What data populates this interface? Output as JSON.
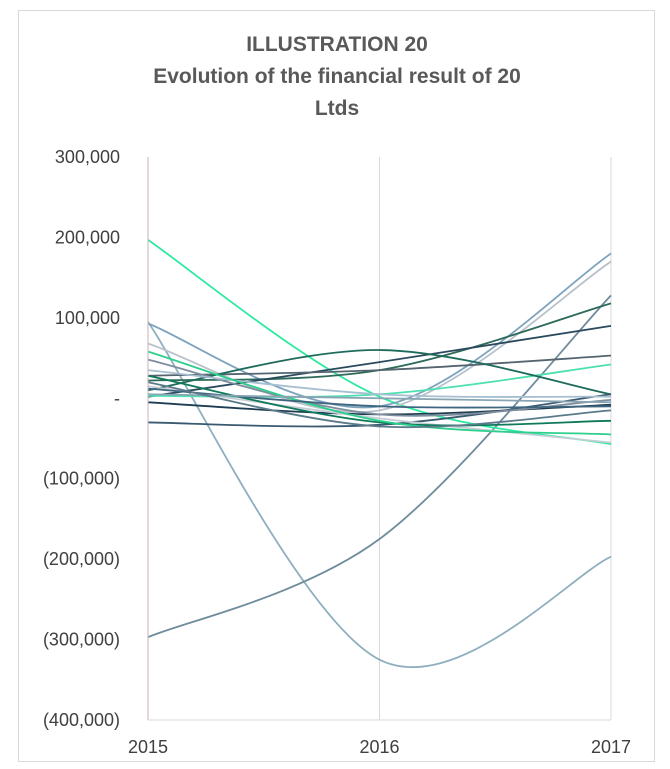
{
  "chart_data": {
    "type": "line",
    "title_lines": [
      "ILLUSTRATION 20",
      "Evolution of the financial result of 20",
      "Ltds"
    ],
    "xlabel": "",
    "ylabel": "",
    "x": [
      2015,
      2016,
      2017
    ],
    "x_tick_labels": [
      "2015",
      "2016",
      "2017"
    ],
    "ylim": [
      -400000,
      300000
    ],
    "y_ticks": [
      300000,
      200000,
      100000,
      0,
      -100000,
      -200000,
      -300000,
      -400000
    ],
    "y_tick_labels": [
      "300,000",
      "200,000",
      "100,000",
      "-",
      "(100,000)",
      "(200,000)",
      "(300,000)",
      "(400,000)"
    ],
    "grid": "vertical",
    "legend": "none",
    "series": [
      {
        "color": "#8fafc0",
        "values": [
          95000,
          -325000,
          -197000
        ]
      },
      {
        "color": "#6f8c9c",
        "values": [
          -297000,
          -175000,
          128000
        ]
      },
      {
        "color": "#2eeaa0",
        "values": [
          197000,
          2000,
          -57000
        ]
      },
      {
        "color": "#7ea3bd",
        "values": [
          93000,
          -10000,
          180000
        ]
      },
      {
        "color": "#b9c2cb",
        "values": [
          68000,
          -15000,
          170000
        ]
      },
      {
        "color": "#2d6a5a",
        "values": [
          22000,
          35000,
          118000
        ]
      },
      {
        "color": "#2b4a5e",
        "values": [
          2000,
          45000,
          90000
        ]
      },
      {
        "color": "#556570",
        "values": [
          28000,
          35000,
          53000
        ]
      },
      {
        "color": "#4de0b0",
        "values": [
          3000,
          5000,
          42000
        ]
      },
      {
        "color": "#1e6b5c",
        "values": [
          10000,
          60000,
          5000
        ]
      },
      {
        "color": "#3a5a70",
        "values": [
          -30000,
          -33000,
          5000
        ]
      },
      {
        "color": "#1f3d52",
        "values": [
          -5000,
          -20000,
          -8000
        ]
      },
      {
        "color": "#7e8e9e",
        "values": [
          48000,
          -20000,
          -2000
        ]
      },
      {
        "color": "#a7c0d1",
        "values": [
          35000,
          5000,
          2000
        ]
      },
      {
        "color": "#c5ced6",
        "values": [
          15000,
          -25000,
          -55000
        ]
      },
      {
        "color": "#0e7a5a",
        "values": [
          28000,
          -30000,
          -28000
        ]
      },
      {
        "color": "#2ccf8c",
        "values": [
          58000,
          -28000,
          -45000
        ]
      },
      {
        "color": "#3f6680",
        "values": [
          12000,
          -10000,
          -10000
        ]
      },
      {
        "color": "#89a5b4",
        "values": [
          5000,
          0,
          -5000
        ]
      },
      {
        "color": "#5b7a8a",
        "values": [
          20000,
          -35000,
          -15000
        ]
      }
    ]
  }
}
